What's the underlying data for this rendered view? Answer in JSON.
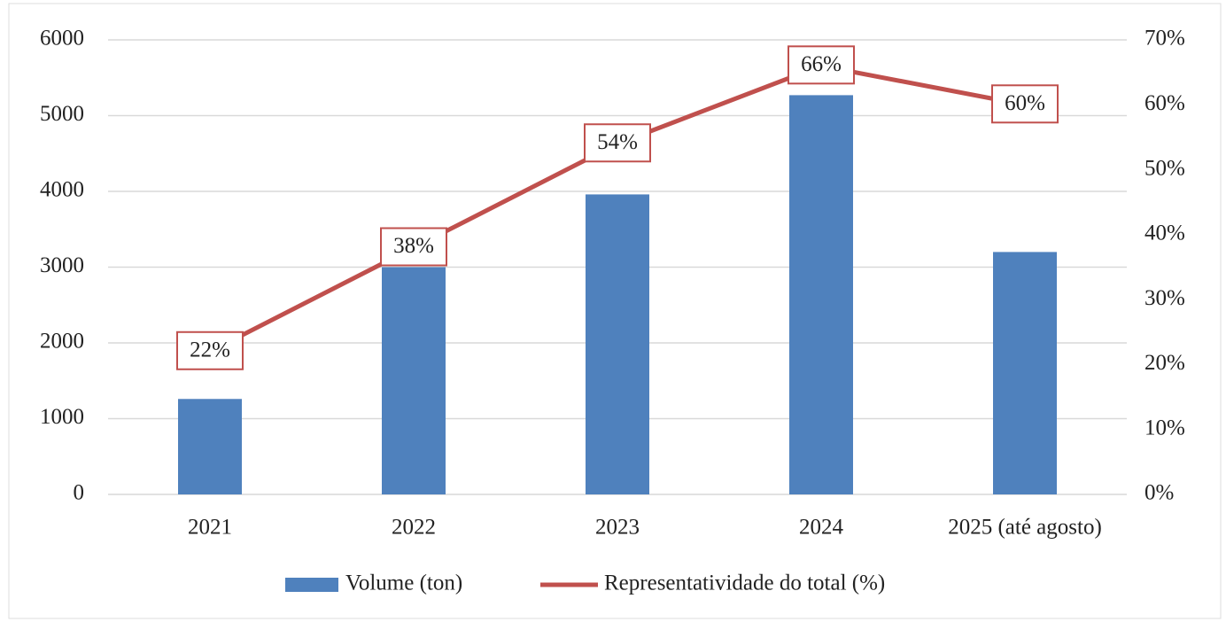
{
  "chart_data": {
    "type": "bar",
    "categories": [
      "2021",
      "2022",
      "2023",
      "2024",
      "2025 (até agosto)"
    ],
    "series": [
      {
        "name": "Volume (ton)",
        "color": "#4f81bd",
        "type": "bar",
        "values": [
          1260,
          3000,
          3960,
          5270,
          3200
        ]
      },
      {
        "name": "Representatividade do total (%)",
        "color": "#c0504d",
        "type": "line",
        "axis": "y2",
        "values": [
          22,
          38,
          54,
          66,
          60
        ],
        "value_labels": [
          "22%",
          "38%",
          "54%",
          "66%",
          "60%"
        ]
      }
    ],
    "ylim": [
      0,
      6000
    ],
    "yticks": [
      0,
      1000,
      2000,
      3000,
      4000,
      5000,
      6000
    ],
    "y2lim": [
      0,
      70
    ],
    "y2ticks": [
      {
        "value": 0,
        "label": "0%"
      },
      {
        "value": 10,
        "label": "10%"
      },
      {
        "value": 20,
        "label": "20%"
      },
      {
        "value": 30,
        "label": "30%"
      },
      {
        "value": 40,
        "label": "40%"
      },
      {
        "value": 50,
        "label": "50%"
      },
      {
        "value": 60,
        "label": "60%"
      },
      {
        "value": 70,
        "label": "70%"
      }
    ],
    "grid": true,
    "legend": "bottom"
  }
}
